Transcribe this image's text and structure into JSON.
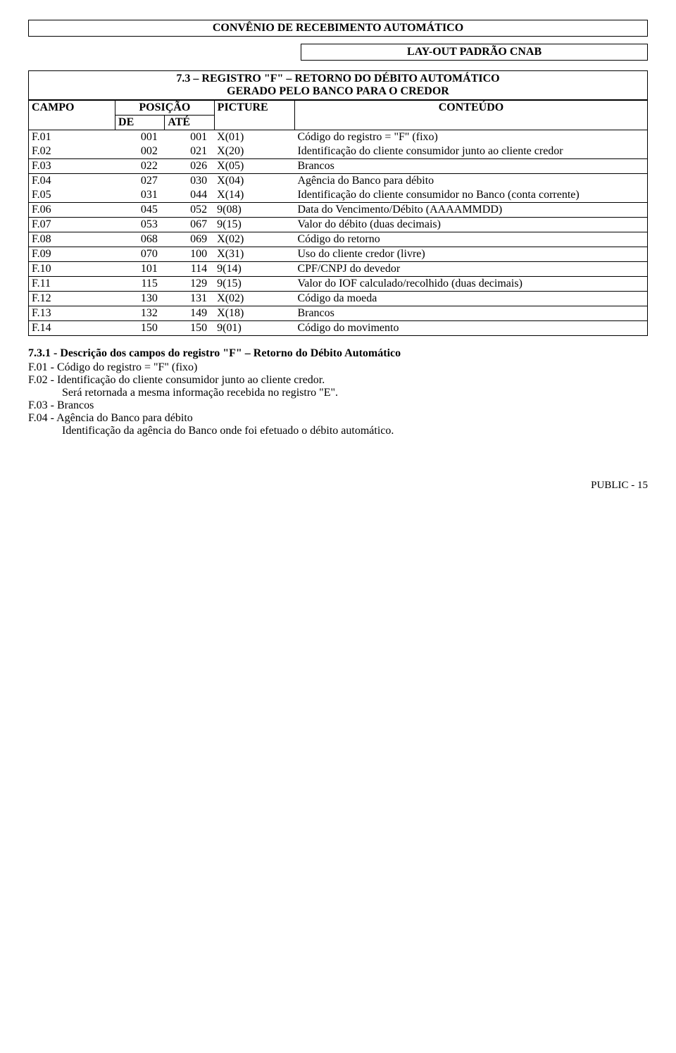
{
  "doc": {
    "title": "CONVÊNIO  DE  RECEBIMENTO  AUTOMÁTICO",
    "subtitle": "LAY-OUT  PADRÃO  CNAB",
    "reg_title": "7.3 – REGISTRO \"F\" – RETORNO DO DÉBITO AUTOMÁTICO\nGERADO PELO BANCO PARA O CREDOR"
  },
  "headers": {
    "campo": "CAMPO",
    "posicao": "POSIÇÃO",
    "de": "DE",
    "ate": "ATÉ",
    "picture": "PICTURE",
    "conteudo": "CONTEÚDO"
  },
  "rows": [
    {
      "campo": "F.01",
      "de": "001",
      "ate": "001",
      "pic": "X(01)",
      "cont": "Código do registro  =  \"F\" (fixo)",
      "group_first": true
    },
    {
      "campo": "F.02",
      "de": "002",
      "ate": "021",
      "pic": "X(20)",
      "cont": "Identificação do cliente consumidor junto ao cliente credor"
    },
    {
      "campo": "F.03",
      "de": "022",
      "ate": "026",
      "pic": "X(05)",
      "cont": "Brancos",
      "group_first": true
    },
    {
      "campo": "F.04",
      "de": "027",
      "ate": "030",
      "pic": "X(04)",
      "cont": "Agência do Banco para débito",
      "group_first": true
    },
    {
      "campo": "F.05",
      "de": "031",
      "ate": "044",
      "pic": "X(14)",
      "cont": "Identificação do cliente consumidor no Banco (conta corrente)"
    },
    {
      "campo": "F.06",
      "de": "045",
      "ate": "052",
      "pic": "9(08)",
      "cont": "Data do Vencimento/Débito (AAAAMMDD)",
      "group_first": true
    },
    {
      "campo": "F.07",
      "de": "053",
      "ate": "067",
      "pic": "9(15)",
      "cont": "Valor do débito (duas decimais)",
      "group_first": true
    },
    {
      "campo": "F.08",
      "de": "068",
      "ate": "069",
      "pic": "X(02)",
      "cont": "Código do retorno",
      "group_first": true
    },
    {
      "campo": "F.09",
      "de": "070",
      "ate": "100",
      "pic": "X(31)",
      "cont": "Uso do cliente credor (livre)",
      "group_first": true
    },
    {
      "campo": "F.10",
      "de": "101",
      "ate": "114",
      "pic": "9(14)",
      "cont": "CPF/CNPJ do devedor",
      "group_first": true
    },
    {
      "campo": "F.11",
      "de": "115",
      "ate": "129",
      "pic": "9(15)",
      "cont": "Valor do IOF calculado/recolhido (duas decimais)",
      "group_first": true
    },
    {
      "campo": "F.12",
      "de": "130",
      "ate": "131",
      "pic": "X(02)",
      "cont": "Código da moeda",
      "group_first": true
    },
    {
      "campo": "F.13",
      "de": "132",
      "ate": "149",
      "pic": "X(18)",
      "cont": "Brancos",
      "group_first": true
    },
    {
      "campo": "F.14",
      "de": "150",
      "ate": "150",
      "pic": "9(01)",
      "cont": "Código do movimento",
      "group_first": true,
      "last": true
    }
  ],
  "desc": {
    "title": "7.3.1 -  Descrição dos campos do registro \"F\" – Retorno do Débito Automático",
    "lines": [
      {
        "text": "F.01 -  Código do registro  =  \"F\" (fixo)"
      },
      {
        "text": "F.02 -  Identificação do cliente consumidor junto ao cliente credor."
      },
      {
        "text": "Será retornada a mesma informação recebida no registro \"E\".",
        "indent": true
      },
      {
        "text": "F.03 -  Brancos"
      },
      {
        "text": "F.04 -  Agência do Banco para débito"
      },
      {
        "text": "Identificação da agência do Banco onde foi efetuado o débito automático.",
        "indent": true
      }
    ]
  },
  "footer": "PUBLIC - 15"
}
